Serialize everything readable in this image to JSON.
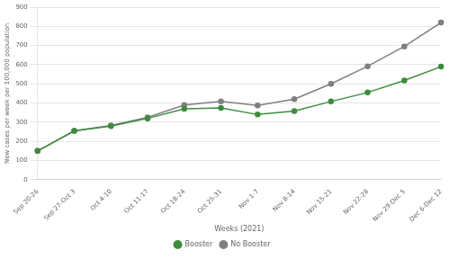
{
  "chart_data": {
    "type": "line",
    "categories": [
      "Sep 20-26",
      "Sep 27-Oct 3",
      "Oct 4-10",
      "Oct 11-17",
      "Oct 18-24",
      "Oct 25-31",
      "Nov 1-7",
      "Nov 8-14",
      "Nov 15-21",
      "Nov 22-28",
      "Nov 29-Dec 5",
      "Dec 6-Dec 12"
    ],
    "series": [
      {
        "name": "Booster",
        "color": "#3d8c3d",
        "values": [
          150,
          255,
          280,
          320,
          370,
          375,
          340,
          358,
          408,
          455,
          518,
          590
        ]
      },
      {
        "name": "No Booster",
        "color": "#7f7f7f",
        "values": [
          150,
          255,
          283,
          325,
          390,
          408,
          388,
          420,
          500,
          592,
          695,
          820
        ]
      }
    ],
    "xlabel": "Weeks (2021)",
    "ylabel": "New cases per week per 100,000 population",
    "ylim": [
      0,
      900
    ],
    "yticks": [
      0,
      100,
      200,
      300,
      400,
      500,
      600,
      700,
      800,
      900
    ],
    "grid": true,
    "legend": "bottom",
    "marker": "circle"
  }
}
